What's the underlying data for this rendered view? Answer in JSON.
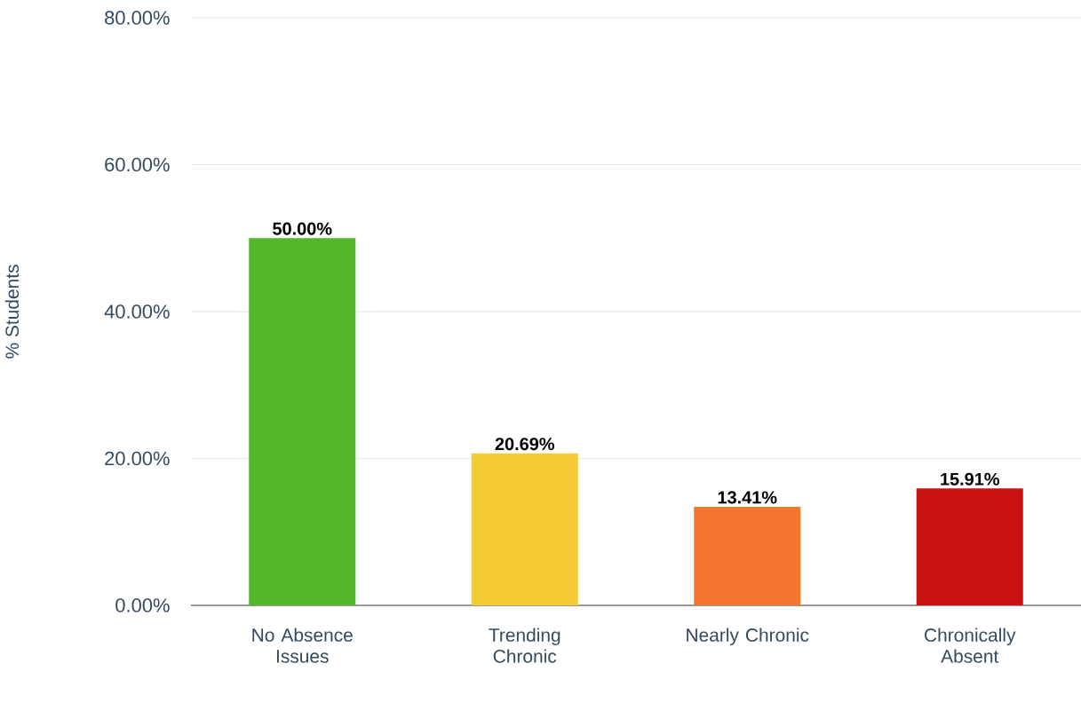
{
  "chart_data": {
    "type": "bar",
    "ylabel": "% Students",
    "categories": [
      "No Absence Issues",
      "Trending Chronic",
      "Nearly Chronic",
      "Chronically Absent"
    ],
    "values": [
      50.0,
      20.69,
      13.41,
      15.91
    ],
    "colors": [
      "#53b72b",
      "#f4cb35",
      "#f4762f",
      "#c81212"
    ],
    "value_labels": [
      "50.00%",
      "20.69%",
      "13.41%",
      "15.91%"
    ],
    "ylim": [
      0,
      80
    ],
    "yticks": [
      {
        "value": 0,
        "label": "0.00%"
      },
      {
        "value": 20,
        "label": "20.00%"
      },
      {
        "value": 40,
        "label": "40.00%"
      },
      {
        "value": 60,
        "label": "60.00%"
      },
      {
        "value": 80,
        "label": "80.00%"
      }
    ],
    "grid": "y"
  }
}
